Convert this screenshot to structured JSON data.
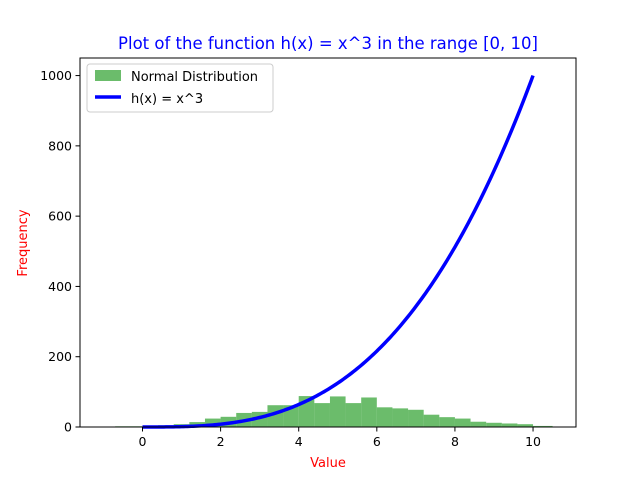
{
  "chart_data": {
    "type": "bar",
    "title": "Plot of the function h(x) = x^3 in the range [0, 10]",
    "xlabel": "Value",
    "ylabel": "Frequency",
    "xlim": [
      -1.6,
      11.1
    ],
    "ylim": [
      0,
      1050
    ],
    "xticks": [
      0,
      2,
      4,
      6,
      8,
      10
    ],
    "yticks": [
      0,
      200,
      400,
      600,
      800,
      1000
    ],
    "legend_position": "upper-left",
    "grid": false,
    "colors": {
      "title": "#0000ff",
      "axis_labels": "#ff0000",
      "histogram": "#2ca02c",
      "curve": "#0000ff"
    },
    "histogram": {
      "name": "Normal Distribution",
      "alpha": 0.7,
      "bin_edges": [
        -0.7,
        -0.35,
        0.0,
        0.4,
        0.8,
        1.2,
        1.6,
        2.0,
        2.4,
        2.8,
        3.2,
        3.6,
        4.0,
        4.4,
        4.8,
        5.2,
        5.6,
        6.0,
        6.4,
        6.8,
        7.2,
        7.6,
        8.0,
        8.4,
        8.8,
        9.2,
        9.6,
        10.0,
        10.5
      ],
      "counts": [
        2,
        2,
        4,
        5,
        8,
        14,
        24,
        29,
        40,
        43,
        62,
        62,
        88,
        68,
        87,
        68,
        84,
        56,
        53,
        49,
        35,
        28,
        24,
        15,
        12,
        10,
        8,
        3
      ]
    },
    "series": [
      {
        "name": "h(x) = x^3",
        "function": "x^3",
        "x_range": [
          0,
          10
        ]
      }
    ]
  }
}
